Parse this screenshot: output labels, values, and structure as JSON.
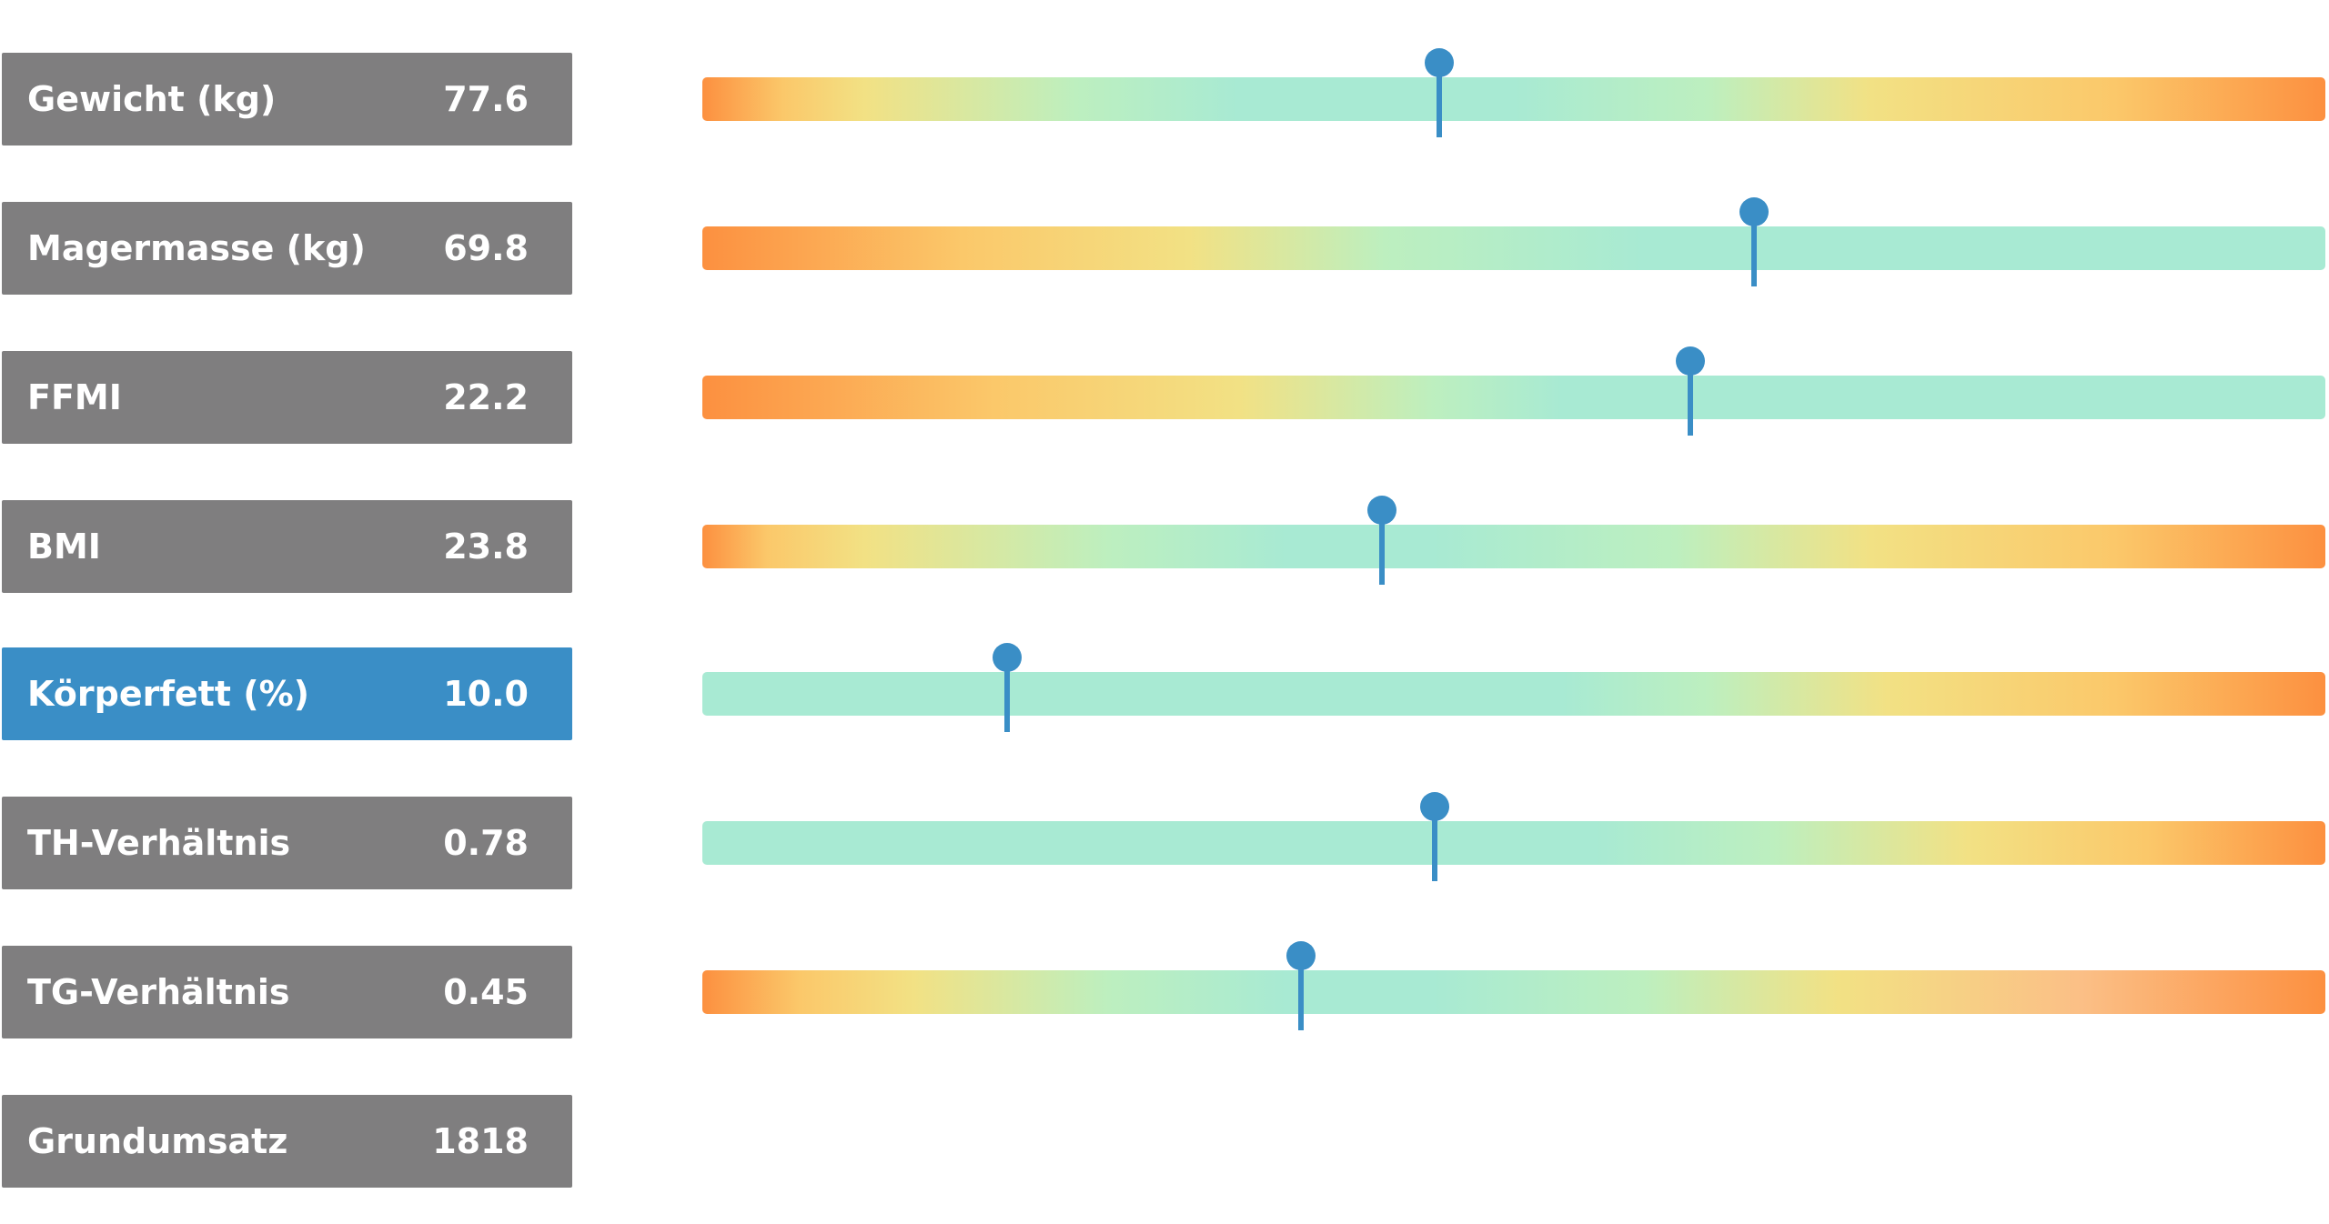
{
  "colors": {
    "label_bg": "#7f7e7f",
    "label_bg_active": "#3a8ec6",
    "marker": "#3a8ec6",
    "orange": "#fc9040",
    "yellow": "#f2e184",
    "mint": "#a8ead3"
  },
  "metrics": [
    {
      "label": "Gewicht (kg)",
      "value": "77.6",
      "active": false,
      "marker_fraction": 0.454,
      "gradient": [
        "#fc9040 0%",
        "#fbc86a 5%",
        "#f2e184 10%",
        "#bdefbf 23%",
        "#a8ead3 33%",
        "#a8ead3 50%",
        "#bdefbf 62%",
        "#f2e184 72%",
        "#fbc86a 87%",
        "#fc9040 100%"
      ]
    },
    {
      "label": "Magermasse (kg)",
      "value": "69.8",
      "active": false,
      "marker_fraction": 0.648,
      "gradient": [
        "#fc9040 0%",
        "#fbc86a 16%",
        "#f2e184 30%",
        "#bdefbf 42%",
        "#a8ead3 58%",
        "#a8ead3 100%"
      ]
    },
    {
      "label": "FFMI",
      "value": "22.2",
      "active": false,
      "marker_fraction": 0.609,
      "gradient": [
        "#fc9040 0%",
        "#fbc86a 18%",
        "#f2e184 33%",
        "#bdefbf 45%",
        "#a8ead3 53%",
        "#a8ead3 100%"
      ]
    },
    {
      "label": "BMI",
      "value": "23.8",
      "active": false,
      "marker_fraction": 0.419,
      "gradient": [
        "#fc9040 0%",
        "#fbc86a 4%",
        "#f2e184 10%",
        "#bdefbf 25%",
        "#a8ead3 36%",
        "#a8ead3 45%",
        "#bdefbf 60%",
        "#f2e184 72%",
        "#fbc86a 87%",
        "#fc9040 100%"
      ]
    },
    {
      "label": "Körperfett (%)",
      "value": "10.0",
      "active": true,
      "marker_fraction": 0.188,
      "gradient": [
        "#a8ead3 0%",
        "#a8ead3 53%",
        "#bdefbf 62%",
        "#f2e184 73%",
        "#fbc86a 87%",
        "#fc9040 100%"
      ]
    },
    {
      "label": "TH-Verhältnis",
      "value": "0.78",
      "active": false,
      "marker_fraction": 0.451,
      "gradient": [
        "#a8ead3 0%",
        "#a8ead3 55%",
        "#bdefbf 66%",
        "#f2e184 78%",
        "#fbc86a 89%",
        "#fc9040 100%"
      ]
    },
    {
      "label": "TG-Verhältnis",
      "value": "0.45",
      "active": false,
      "marker_fraction": 0.369,
      "gradient": [
        "#fc9040 0%",
        "#fbc86a 6%",
        "#f2e184 13%",
        "#bdefbf 25%",
        "#a8ead3 36%",
        "#a8ead3 45%",
        "#bdefbf 58%",
        "#f2e184 70%",
        "#fbbf86 85%",
        "#fc9040 100%"
      ]
    },
    {
      "label": "Grundumsatz",
      "value": "1818",
      "active": false,
      "marker_fraction": null,
      "gradient": null
    }
  ]
}
